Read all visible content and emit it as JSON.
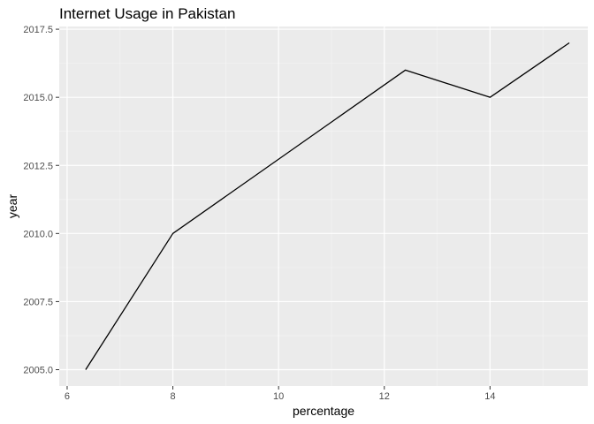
{
  "chart_data": {
    "type": "line",
    "title": "Internet Usage in Pakistan",
    "xlabel": "percentage",
    "ylabel": "year",
    "xlim": [
      5.85,
      15.85
    ],
    "ylim": [
      2004.4,
      2017.6
    ],
    "x_ticks": [
      6,
      8,
      10,
      12,
      14
    ],
    "x_tick_labels": [
      "6",
      "8",
      "10",
      "12",
      "14"
    ],
    "y_ticks": [
      2005.0,
      2007.5,
      2010.0,
      2012.5,
      2015.0,
      2017.5
    ],
    "y_tick_labels": [
      "2005.0",
      "2007.5",
      "2010.0",
      "2012.5",
      "2015.0",
      "2017.5"
    ],
    "grid": true,
    "legend": "none",
    "series": [
      {
        "x": [
          6.35,
          8.0,
          12.4,
          14.0,
          15.5
        ],
        "y": [
          2005,
          2010,
          2016,
          2015,
          2017
        ]
      }
    ],
    "colors": {
      "panel_background": "#ebebeb",
      "grid_major": "#ffffff",
      "grid_minor": "#f5f5f5",
      "line": "#000000",
      "tick": "#333333"
    }
  }
}
